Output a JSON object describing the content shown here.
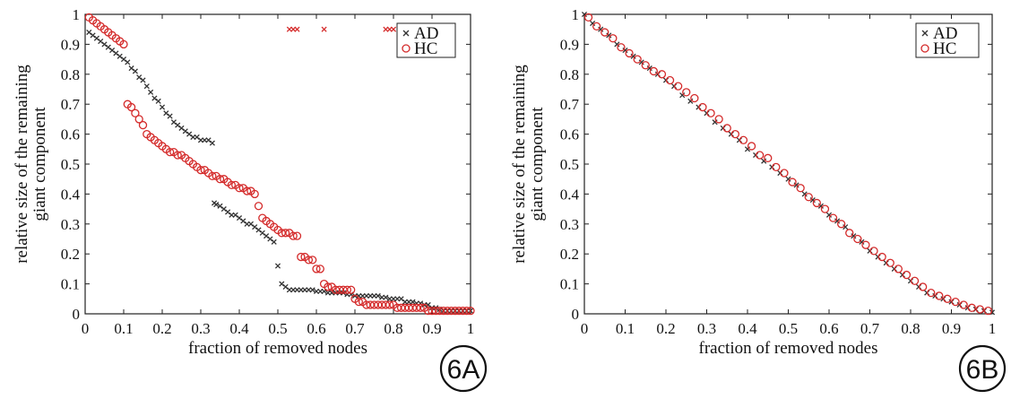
{
  "colors": {
    "ad": "#333333",
    "hc": "#d42a2a",
    "axis": "#222222",
    "background": "#ffffff"
  },
  "chart_data": [
    {
      "type": "scatter",
      "panel_label": "6A",
      "xlabel": "fraction of removed nodes",
      "ylabel_line1": "relative size of the remaining",
      "ylabel_line2": "giant component",
      "xlim": [
        0,
        1
      ],
      "ylim": [
        0,
        1
      ],
      "xticks": [
        "0",
        "0.1",
        "0.2",
        "0.3",
        "0.4",
        "0.5",
        "0.6",
        "0.7",
        "0.8",
        "0.9",
        "1"
      ],
      "yticks": [
        "0",
        "0.1",
        "0.2",
        "0.3",
        "0.4",
        "0.5",
        "0.6",
        "0.7",
        "0.8",
        "0.9",
        "1"
      ],
      "grid": false,
      "legend_position": "top-right",
      "series": [
        {
          "name": "AD",
          "marker": "x",
          "x": [
            0.01,
            0.02,
            0.03,
            0.04,
            0.05,
            0.06,
            0.07,
            0.08,
            0.09,
            0.1,
            0.11,
            0.12,
            0.13,
            0.14,
            0.15,
            0.16,
            0.17,
            0.18,
            0.19,
            0.2,
            0.21,
            0.22,
            0.23,
            0.24,
            0.25,
            0.26,
            0.27,
            0.28,
            0.29,
            0.3,
            0.31,
            0.32,
            0.33,
            0.335,
            0.34,
            0.35,
            0.36,
            0.37,
            0.38,
            0.39,
            0.4,
            0.41,
            0.42,
            0.43,
            0.44,
            0.45,
            0.46,
            0.47,
            0.48,
            0.49,
            0.5,
            0.51,
            0.52,
            0.53,
            0.54,
            0.55,
            0.56,
            0.57,
            0.58,
            0.59,
            0.6,
            0.61,
            0.62,
            0.63,
            0.64,
            0.65,
            0.66,
            0.67,
            0.68,
            0.69,
            0.7,
            0.71,
            0.72,
            0.73,
            0.74,
            0.75,
            0.76,
            0.77,
            0.78,
            0.79,
            0.8,
            0.81,
            0.82,
            0.83,
            0.84,
            0.85,
            0.86,
            0.87,
            0.88,
            0.89,
            0.9,
            0.91,
            0.92,
            0.93,
            0.94,
            0.95,
            0.96,
            0.97,
            0.98,
            0.99,
            1.0,
            0.53,
            0.54,
            0.55,
            0.62,
            0.78,
            0.79,
            0.8
          ],
          "y": [
            0.94,
            0.93,
            0.92,
            0.91,
            0.9,
            0.89,
            0.88,
            0.87,
            0.86,
            0.85,
            0.84,
            0.82,
            0.81,
            0.79,
            0.78,
            0.76,
            0.74,
            0.72,
            0.71,
            0.69,
            0.67,
            0.66,
            0.64,
            0.63,
            0.62,
            0.61,
            0.6,
            0.59,
            0.59,
            0.58,
            0.58,
            0.58,
            0.57,
            0.37,
            0.365,
            0.36,
            0.35,
            0.34,
            0.33,
            0.33,
            0.32,
            0.31,
            0.3,
            0.3,
            0.29,
            0.28,
            0.27,
            0.26,
            0.25,
            0.24,
            0.16,
            0.1,
            0.09,
            0.08,
            0.08,
            0.08,
            0.08,
            0.08,
            0.08,
            0.08,
            0.075,
            0.075,
            0.075,
            0.07,
            0.07,
            0.07,
            0.07,
            0.07,
            0.065,
            0.065,
            0.06,
            0.06,
            0.06,
            0.06,
            0.06,
            0.06,
            0.06,
            0.055,
            0.055,
            0.05,
            0.05,
            0.05,
            0.05,
            0.04,
            0.04,
            0.04,
            0.035,
            0.035,
            0.03,
            0.03,
            0.02,
            0.02,
            0.015,
            0.01,
            0.01,
            0.01,
            0.01,
            0.01,
            0.01,
            0.01,
            0.01,
            0.95,
            0.95,
            0.95,
            0.95,
            0.95,
            0.95,
            0.95
          ]
        },
        {
          "name": "HC",
          "marker": "o",
          "x": [
            0.01,
            0.02,
            0.03,
            0.04,
            0.05,
            0.06,
            0.07,
            0.08,
            0.09,
            0.1,
            0.11,
            0.12,
            0.13,
            0.14,
            0.15,
            0.16,
            0.17,
            0.18,
            0.19,
            0.2,
            0.21,
            0.22,
            0.23,
            0.24,
            0.25,
            0.26,
            0.27,
            0.28,
            0.29,
            0.3,
            0.31,
            0.32,
            0.33,
            0.34,
            0.35,
            0.36,
            0.37,
            0.38,
            0.39,
            0.4,
            0.41,
            0.42,
            0.43,
            0.44,
            0.45,
            0.46,
            0.47,
            0.48,
            0.49,
            0.5,
            0.51,
            0.52,
            0.53,
            0.54,
            0.55,
            0.56,
            0.57,
            0.58,
            0.59,
            0.6,
            0.61,
            0.62,
            0.63,
            0.64,
            0.65,
            0.66,
            0.67,
            0.68,
            0.69,
            0.7,
            0.71,
            0.72,
            0.73,
            0.74,
            0.75,
            0.76,
            0.77,
            0.78,
            0.79,
            0.8,
            0.81,
            0.82,
            0.83,
            0.84,
            0.85,
            0.86,
            0.87,
            0.88,
            0.89,
            0.9,
            0.91,
            0.92,
            0.93,
            0.94,
            0.95,
            0.96,
            0.97,
            0.98,
            0.99,
            1.0
          ],
          "y": [
            0.99,
            0.98,
            0.97,
            0.96,
            0.95,
            0.94,
            0.93,
            0.92,
            0.91,
            0.9,
            0.7,
            0.69,
            0.67,
            0.65,
            0.63,
            0.6,
            0.59,
            0.58,
            0.57,
            0.56,
            0.55,
            0.54,
            0.54,
            0.53,
            0.53,
            0.52,
            0.51,
            0.5,
            0.49,
            0.48,
            0.48,
            0.47,
            0.46,
            0.46,
            0.45,
            0.45,
            0.44,
            0.43,
            0.43,
            0.42,
            0.42,
            0.41,
            0.41,
            0.4,
            0.36,
            0.32,
            0.31,
            0.3,
            0.29,
            0.28,
            0.27,
            0.27,
            0.27,
            0.26,
            0.26,
            0.19,
            0.19,
            0.18,
            0.18,
            0.15,
            0.15,
            0.1,
            0.09,
            0.09,
            0.08,
            0.08,
            0.08,
            0.08,
            0.08,
            0.05,
            0.04,
            0.04,
            0.03,
            0.03,
            0.03,
            0.03,
            0.03,
            0.03,
            0.03,
            0.03,
            0.02,
            0.02,
            0.02,
            0.02,
            0.02,
            0.02,
            0.02,
            0.02,
            0.01,
            0.01,
            0.01,
            0.01,
            0.01,
            0.01,
            0.01,
            0.01,
            0.01,
            0.01,
            0.01,
            0.01
          ]
        }
      ]
    },
    {
      "type": "scatter",
      "panel_label": "6B",
      "xlabel": "fraction of removed nodes",
      "ylabel_line1": "relative size of the remaining",
      "ylabel_line2": "giant component",
      "xlim": [
        0,
        1
      ],
      "ylim": [
        0,
        1
      ],
      "xticks": [
        "0",
        "0.1",
        "0.2",
        "0.3",
        "0.4",
        "0.5",
        "0.6",
        "0.7",
        "0.8",
        "0.9",
        "1"
      ],
      "yticks": [
        "0",
        "0.1",
        "0.2",
        "0.3",
        "0.4",
        "0.5",
        "0.6",
        "0.7",
        "0.8",
        "0.9",
        "1"
      ],
      "grid": false,
      "legend_position": "top-right",
      "series": [
        {
          "name": "AD",
          "marker": "x",
          "x": [
            0.0,
            0.02,
            0.04,
            0.06,
            0.08,
            0.1,
            0.12,
            0.14,
            0.16,
            0.18,
            0.2,
            0.22,
            0.24,
            0.26,
            0.28,
            0.3,
            0.32,
            0.34,
            0.36,
            0.38,
            0.4,
            0.42,
            0.44,
            0.46,
            0.48,
            0.5,
            0.52,
            0.54,
            0.56,
            0.58,
            0.6,
            0.62,
            0.64,
            0.66,
            0.68,
            0.7,
            0.72,
            0.74,
            0.76,
            0.78,
            0.8,
            0.82,
            0.84,
            0.86,
            0.88,
            0.9,
            0.92,
            0.94,
            0.96,
            0.98,
            1.0
          ],
          "y": [
            1.0,
            0.97,
            0.95,
            0.93,
            0.9,
            0.88,
            0.86,
            0.84,
            0.82,
            0.8,
            0.78,
            0.76,
            0.73,
            0.71,
            0.69,
            0.67,
            0.64,
            0.62,
            0.6,
            0.58,
            0.55,
            0.53,
            0.51,
            0.49,
            0.47,
            0.45,
            0.43,
            0.4,
            0.38,
            0.36,
            0.33,
            0.31,
            0.29,
            0.26,
            0.24,
            0.21,
            0.19,
            0.17,
            0.15,
            0.13,
            0.11,
            0.09,
            0.07,
            0.06,
            0.05,
            0.04,
            0.03,
            0.02,
            0.015,
            0.01,
            0.005
          ]
        },
        {
          "name": "HC",
          "marker": "o",
          "x": [
            0.01,
            0.03,
            0.05,
            0.07,
            0.09,
            0.11,
            0.13,
            0.15,
            0.17,
            0.19,
            0.21,
            0.23,
            0.25,
            0.27,
            0.29,
            0.31,
            0.33,
            0.35,
            0.37,
            0.39,
            0.41,
            0.43,
            0.45,
            0.47,
            0.49,
            0.51,
            0.53,
            0.55,
            0.57,
            0.59,
            0.61,
            0.63,
            0.65,
            0.67,
            0.69,
            0.71,
            0.73,
            0.75,
            0.77,
            0.79,
            0.81,
            0.83,
            0.85,
            0.87,
            0.89,
            0.91,
            0.93,
            0.95,
            0.97,
            0.99
          ],
          "y": [
            0.99,
            0.96,
            0.94,
            0.92,
            0.89,
            0.87,
            0.85,
            0.83,
            0.81,
            0.8,
            0.78,
            0.76,
            0.74,
            0.72,
            0.69,
            0.67,
            0.65,
            0.62,
            0.6,
            0.58,
            0.56,
            0.53,
            0.52,
            0.49,
            0.47,
            0.44,
            0.42,
            0.39,
            0.37,
            0.35,
            0.32,
            0.3,
            0.27,
            0.25,
            0.23,
            0.21,
            0.19,
            0.17,
            0.15,
            0.13,
            0.11,
            0.09,
            0.07,
            0.06,
            0.05,
            0.04,
            0.03,
            0.02,
            0.015,
            0.01
          ]
        }
      ]
    }
  ]
}
